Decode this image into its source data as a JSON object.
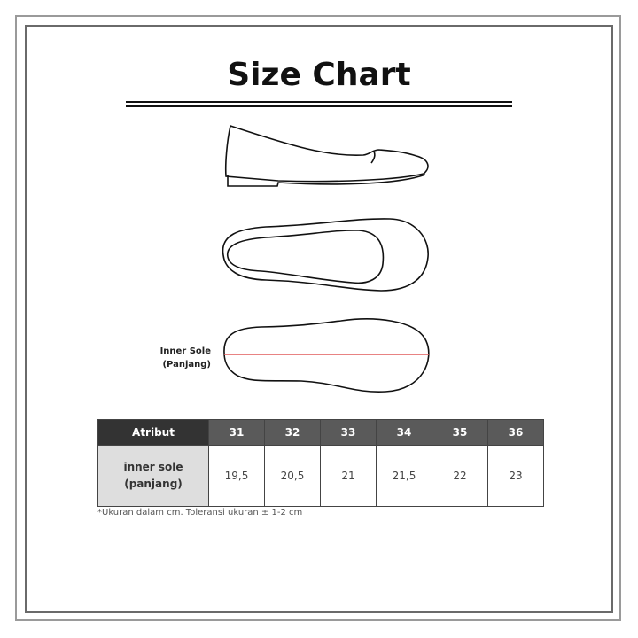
{
  "title": "Size Chart",
  "diagram": {
    "label_line1": "Inner Sole",
    "label_line2": "(Panjang)",
    "measure_color": "#e05a5a"
  },
  "table": {
    "header": "Atribut",
    "sizes": [
      "31",
      "32",
      "33",
      "34",
      "35",
      "36"
    ],
    "row_label_line1": "inner sole",
    "row_label_line2": "(panjang)",
    "values": [
      "19,5",
      "20,5",
      "21",
      "21,5",
      "22",
      "23"
    ]
  },
  "note": "*Ukuran dalam cm. Toleransi ukuran ± 1-2 cm"
}
